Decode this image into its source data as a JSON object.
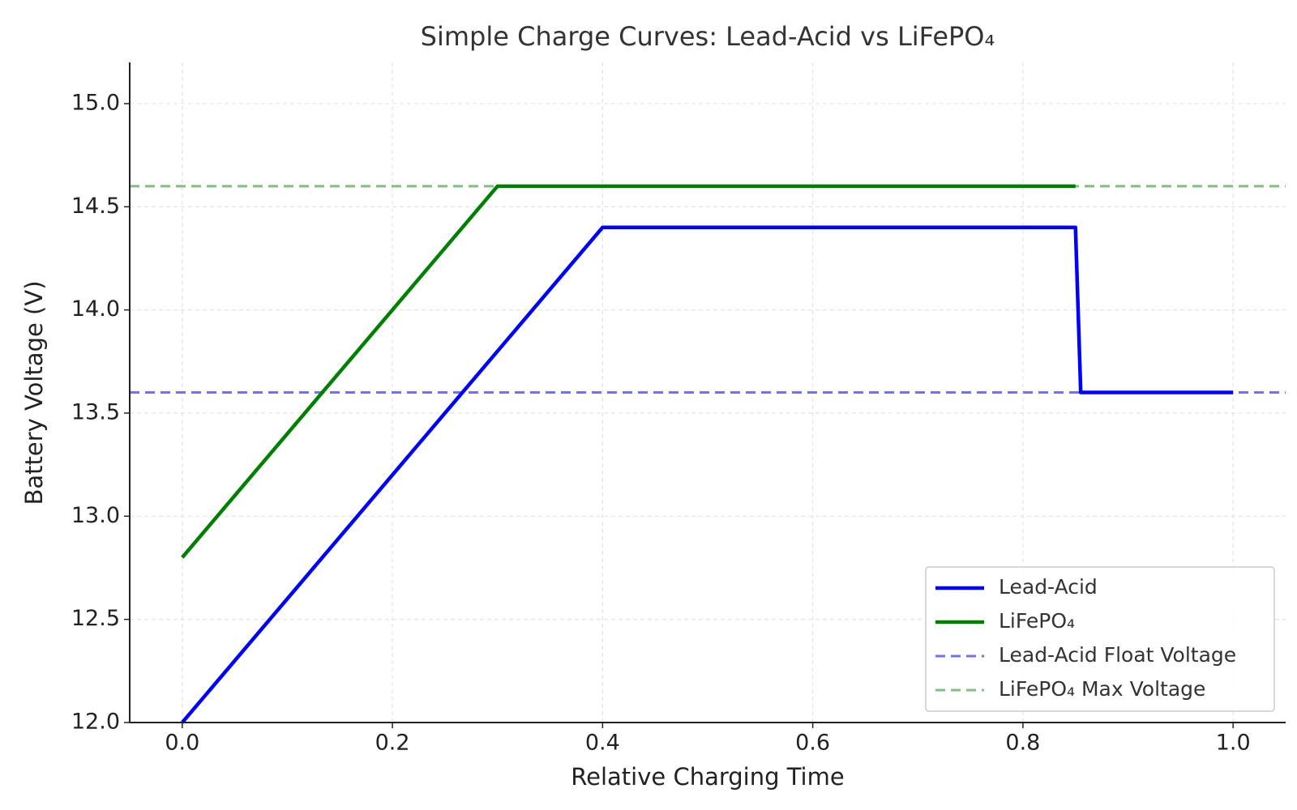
{
  "chart_data": {
    "type": "line",
    "title": "Simple Charge Curves: Lead-Acid vs LiFePO₄",
    "xlabel": "Relative Charging Time",
    "ylabel": "Battery Voltage (V)",
    "series": [
      {
        "name": "Lead-Acid",
        "color": "#0000ff",
        "x": [
          0,
          0.4,
          0.85,
          0.855,
          1.0
        ],
        "values": [
          12.0,
          14.4,
          14.4,
          13.6,
          13.6
        ]
      },
      {
        "name": "LiFePO₄",
        "color": "#008000",
        "x": [
          0,
          0.3,
          0.85
        ],
        "values": [
          12.8,
          14.6,
          14.6
        ]
      }
    ],
    "reference_lines": [
      {
        "name": "Lead-Acid Float Voltage",
        "color": "#7070ff",
        "value": 13.6
      },
      {
        "name": "LiFePO₄ Max Voltage",
        "color": "#7fbf7f",
        "value": 14.6
      }
    ],
    "xlim": [
      -0.05,
      1.05
    ],
    "ylim": [
      12.0,
      15.2
    ],
    "xticks": [
      {
        "value": 0,
        "label": "0.0"
      },
      0.2,
      0.4,
      0.6,
      0.8,
      {
        "value": 1,
        "label": "1.0"
      }
    ],
    "yticks": [
      {
        "value": 12,
        "label": "12.0"
      },
      12.5,
      {
        "value": 13,
        "label": "13.0"
      },
      13.5,
      {
        "value": 14,
        "label": "14.0"
      },
      14.5,
      {
        "value": 15,
        "label": "15.0"
      }
    ],
    "grid": true,
    "legend": "lower right"
  }
}
